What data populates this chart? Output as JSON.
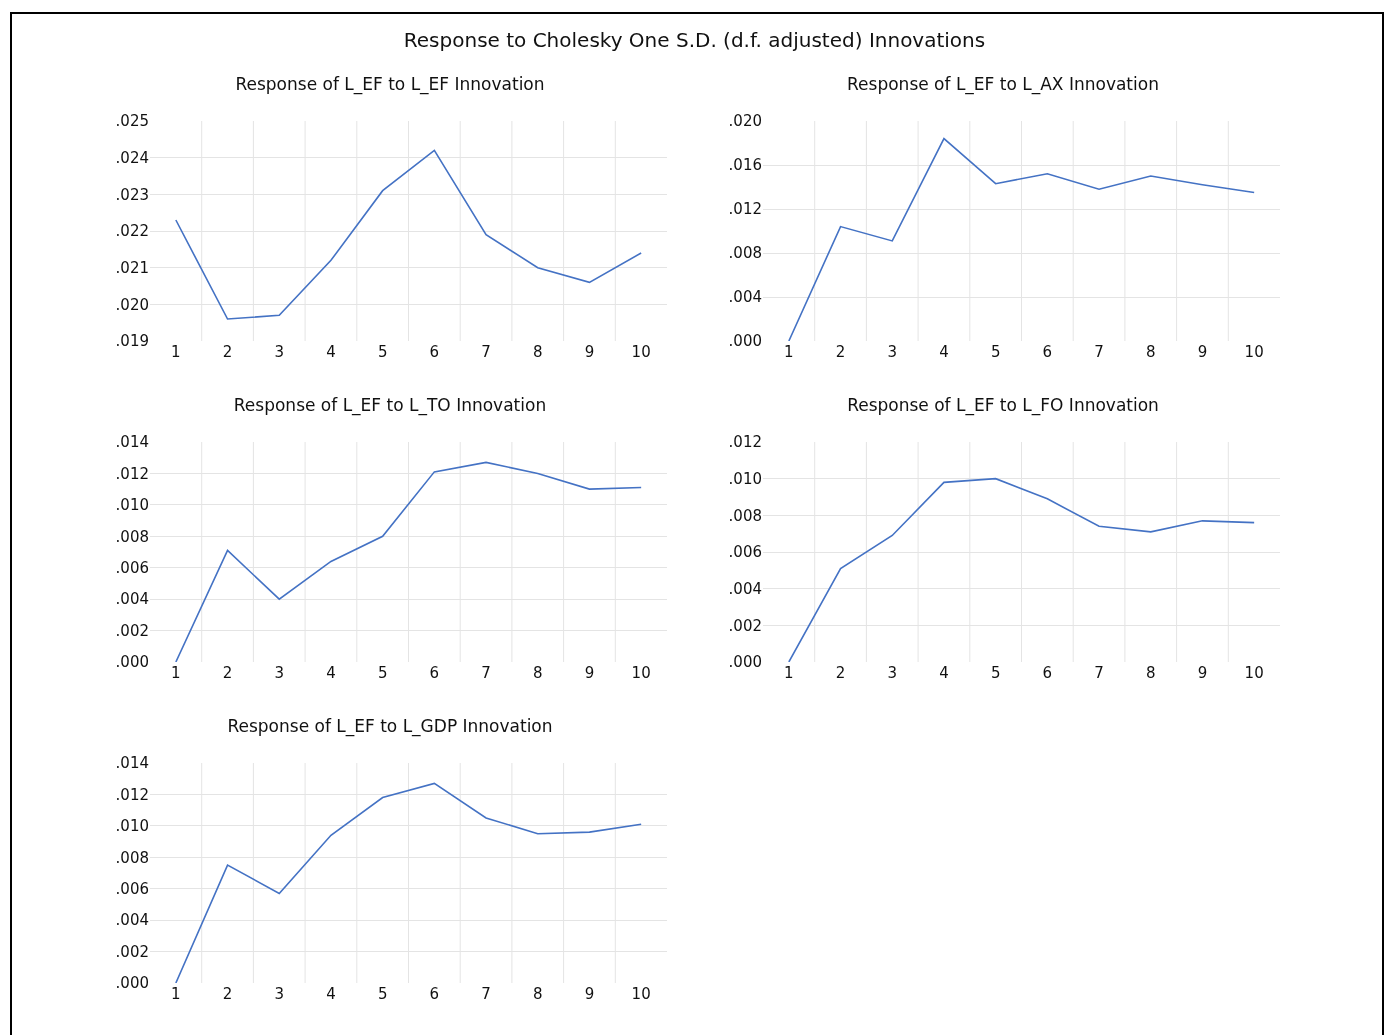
{
  "chart_data": [
    {
      "type": "line",
      "title": "Response of L_EF to L_EF Innovation",
      "annotations": [
        "Response to Cholesky One S.D. (d.f. adjusted) Innovations"
      ],
      "categories": [
        "1",
        "2",
        "3",
        "4",
        "5",
        "6",
        "7",
        "8",
        "9",
        "10"
      ],
      "color": "#4472c4",
      "grid": true,
      "ylim": [
        0.019,
        0.025
      ],
      "yticks": [
        {
          "value": 0.019,
          "label": ".019"
        },
        {
          "value": 0.02,
          "label": ".020"
        },
        {
          "value": 0.021,
          "label": ".021"
        },
        {
          "value": 0.022,
          "label": ".022"
        },
        {
          "value": 0.023,
          "label": ".023"
        },
        {
          "value": 0.024,
          "label": ".024"
        },
        {
          "value": 0.025,
          "label": ".025"
        }
      ],
      "values": [
        0.0223,
        0.0196,
        0.0197,
        0.0212,
        0.0231,
        0.0242,
        0.0219,
        0.021,
        0.0206,
        0.0214
      ]
    },
    {
      "type": "line",
      "title": "Response of L_EF to L_AX Innovation",
      "categories": [
        "1",
        "2",
        "3",
        "4",
        "5",
        "6",
        "7",
        "8",
        "9",
        "10"
      ],
      "color": "#4472c4",
      "grid": true,
      "ylim": [
        0,
        0.02
      ],
      "yticks": [
        {
          "value": 0,
          "label": ".000"
        },
        {
          "value": 0.004,
          "label": ".004"
        },
        {
          "value": 0.008,
          "label": ".008"
        },
        {
          "value": 0.012,
          "label": ".012"
        },
        {
          "value": 0.016,
          "label": ".016"
        },
        {
          "value": 0.02,
          "label": ".020"
        }
      ],
      "values": [
        0,
        0.0104,
        0.0091,
        0.0184,
        0.0143,
        0.0152,
        0.0138,
        0.015,
        0.0142,
        0.0135
      ]
    },
    {
      "type": "line",
      "title": "Response of L_EF to L_TO Innovation",
      "categories": [
        "1",
        "2",
        "3",
        "4",
        "5",
        "6",
        "7",
        "8",
        "9",
        "10"
      ],
      "color": "#4472c4",
      "grid": true,
      "ylim": [
        0,
        0.014
      ],
      "yticks": [
        {
          "value": 0,
          "label": ".000"
        },
        {
          "value": 0.002,
          "label": ".002"
        },
        {
          "value": 0.004,
          "label": ".004"
        },
        {
          "value": 0.006,
          "label": ".006"
        },
        {
          "value": 0.008,
          "label": ".008"
        },
        {
          "value": 0.01,
          "label": ".010"
        },
        {
          "value": 0.012,
          "label": ".012"
        },
        {
          "value": 0.014,
          "label": ".014"
        }
      ],
      "values": [
        0,
        0.0071,
        0.004,
        0.0064,
        0.008,
        0.0121,
        0.0127,
        0.012,
        0.011,
        0.0111
      ]
    },
    {
      "type": "line",
      "title": "Response of L_EF to L_FO Innovation",
      "categories": [
        "1",
        "2",
        "3",
        "4",
        "5",
        "6",
        "7",
        "8",
        "9",
        "10"
      ],
      "color": "#4472c4",
      "grid": true,
      "ylim": [
        0,
        0.012
      ],
      "yticks": [
        {
          "value": 0,
          "label": ".000"
        },
        {
          "value": 0.002,
          "label": ".002"
        },
        {
          "value": 0.004,
          "label": ".004"
        },
        {
          "value": 0.006,
          "label": ".006"
        },
        {
          "value": 0.008,
          "label": ".008"
        },
        {
          "value": 0.01,
          "label": ".010"
        },
        {
          "value": 0.012,
          "label": ".012"
        }
      ],
      "values": [
        0,
        0.0051,
        0.0069,
        0.0098,
        0.01,
        0.0089,
        0.0074,
        0.0071,
        0.0077,
        0.0076
      ]
    },
    {
      "type": "line",
      "title": "Response of L_EF to L_GDP Innovation",
      "categories": [
        "1",
        "2",
        "3",
        "4",
        "5",
        "6",
        "7",
        "8",
        "9",
        "10"
      ],
      "color": "#4472c4",
      "grid": true,
      "ylim": [
        0,
        0.014
      ],
      "yticks": [
        {
          "value": 0,
          "label": ".000"
        },
        {
          "value": 0.002,
          "label": ".002"
        },
        {
          "value": 0.004,
          "label": ".004"
        },
        {
          "value": 0.006,
          "label": ".006"
        },
        {
          "value": 0.008,
          "label": ".008"
        },
        {
          "value": 0.01,
          "label": ".010"
        },
        {
          "value": 0.012,
          "label": ".012"
        },
        {
          "value": 0.014,
          "label": ".014"
        }
      ],
      "values": [
        0,
        0.0075,
        0.0057,
        0.0094,
        0.0118,
        0.0127,
        0.0105,
        0.0095,
        0.0096,
        0.0101
      ]
    }
  ]
}
